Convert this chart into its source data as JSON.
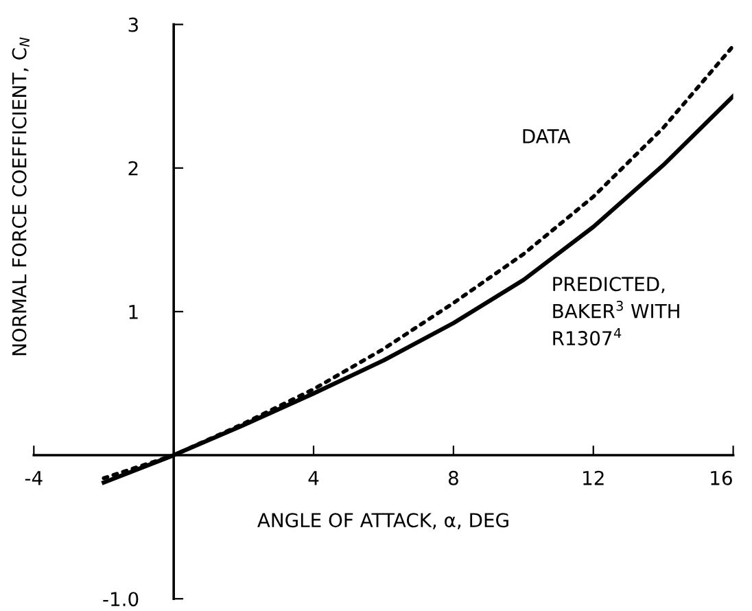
{
  "chart_data": {
    "type": "line",
    "xlabel": "ANGLE OF ATTACK, α, DEG",
    "ylabel": "NORMAL FORCE COEFFICIENT, C$_{N}$",
    "xlim": [
      -4,
      16
    ],
    "ylim": [
      -1,
      3
    ],
    "xticks": [
      -4,
      {
        "value": 0,
        "label": null
      },
      4,
      8,
      12,
      16
    ],
    "yticks": [
      {
        "value": -1,
        "label": "-1.0"
      },
      {
        "value": 0,
        "label": null
      },
      1,
      2,
      3
    ],
    "grid": false,
    "legend": false,
    "series": [
      {
        "name": "DATA",
        "color": "#000000",
        "line_style": "dotted",
        "x": [
          -2,
          0,
          2,
          4,
          6,
          8,
          10,
          12,
          14,
          16
        ],
        "values": [
          -0.16,
          0,
          0.22,
          0.46,
          0.74,
          1.06,
          1.4,
          1.8,
          2.28,
          2.85
        ]
      },
      {
        "name": "PREDICTED,\nBAKER$^{3}$ WITH\nR1307$^{4}$",
        "color": "#000000",
        "line_style": "solid",
        "x": [
          -2,
          0,
          2,
          4,
          6,
          8,
          10,
          12,
          14,
          16
        ],
        "values": [
          -0.19,
          0,
          0.21,
          0.43,
          0.66,
          0.92,
          1.22,
          1.59,
          2.02,
          2.5
        ]
      }
    ]
  }
}
